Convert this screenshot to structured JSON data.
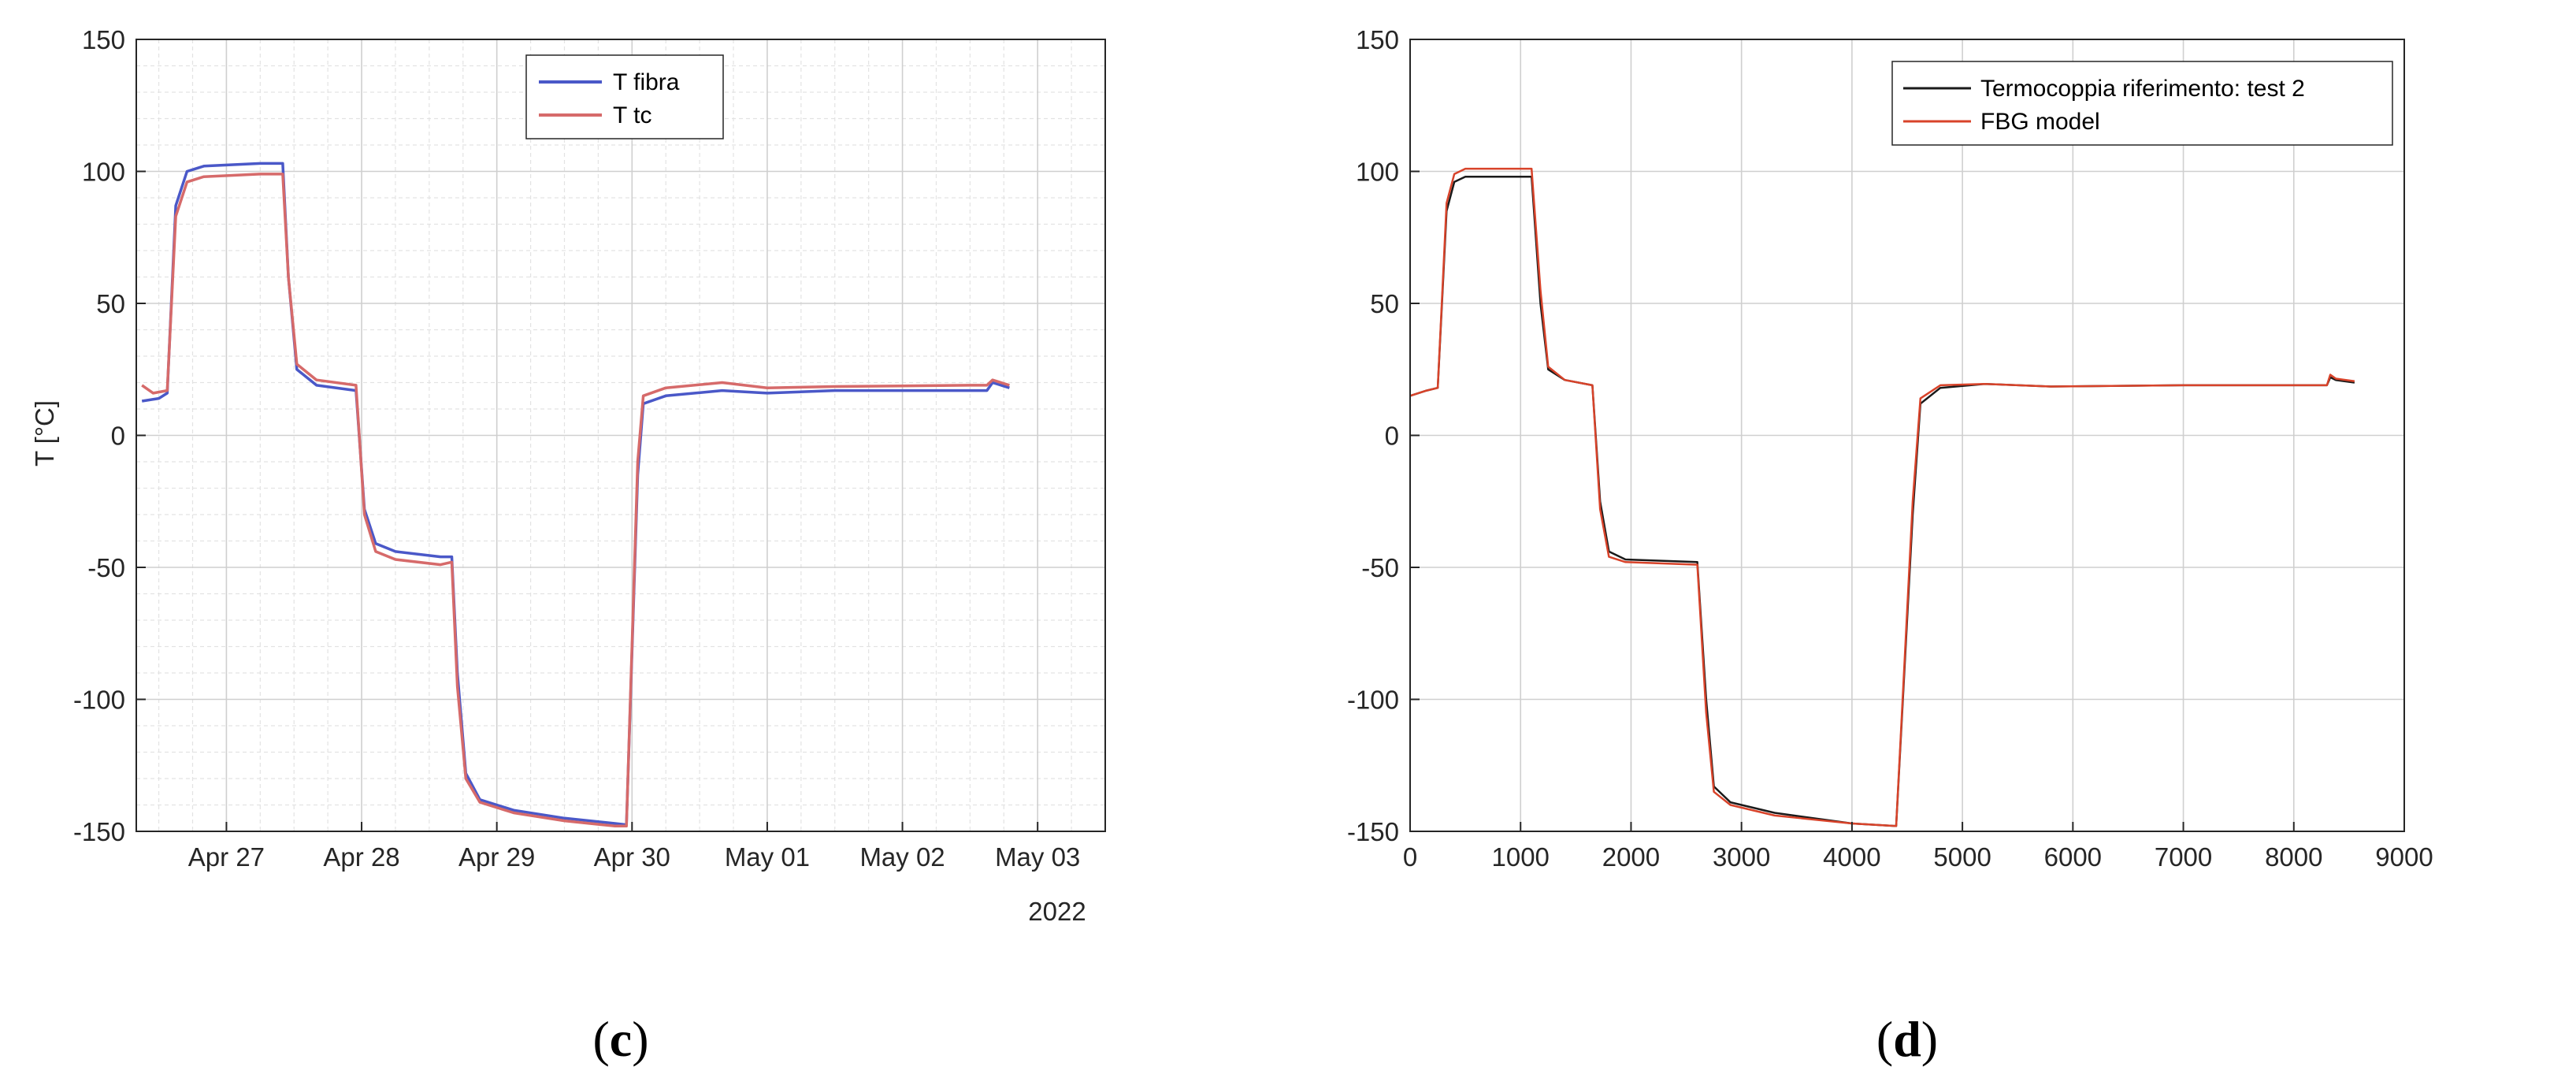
{
  "chart_data": [
    {
      "type": "line",
      "panel": "c",
      "caption_open": "(",
      "caption_letter": "c",
      "caption_close": ")",
      "title": "",
      "xlabel": "",
      "ylabel": "T [°C]",
      "x_scale": "date",
      "xlim": [
        "2022-04-26T08:00",
        "2022-05-03T12:00"
      ],
      "ylim": [
        -150,
        150
      ],
      "yticks": [
        -150,
        -100,
        -50,
        0,
        50,
        100,
        150
      ],
      "xticks": [
        {
          "date": "2022-04-27",
          "label": "Apr 27"
        },
        {
          "date": "2022-04-28",
          "label": "Apr 28"
        },
        {
          "date": "2022-04-29",
          "label": "Apr 29"
        },
        {
          "date": "2022-04-30",
          "label": "Apr 30"
        },
        {
          "date": "2022-05-01",
          "label": "May 01"
        },
        {
          "date": "2022-05-02",
          "label": "May 02"
        },
        {
          "date": "2022-05-03",
          "label": "May 03"
        }
      ],
      "x_secondary_label": "2022",
      "grid": "major and minor",
      "legend": "top-center",
      "series": [
        {
          "name": "T fibra",
          "color": "#4a58c8",
          "points": [
            [
              "2022-04-26T09:00",
              13
            ],
            [
              "2022-04-26T12:00",
              14
            ],
            [
              "2022-04-26T13:30",
              16
            ],
            [
              "2022-04-26T15:00",
              87
            ],
            [
              "2022-04-26T17:00",
              100
            ],
            [
              "2022-04-26T20:00",
              102
            ],
            [
              "2022-04-27T06:00",
              103
            ],
            [
              "2022-04-27T10:00",
              103
            ],
            [
              "2022-04-27T11:00",
              60
            ],
            [
              "2022-04-27T12:30",
              25
            ],
            [
              "2022-04-27T16:00",
              19
            ],
            [
              "2022-04-27T23:00",
              17
            ],
            [
              "2022-04-28T00:30",
              -28
            ],
            [
              "2022-04-28T02:30",
              -41
            ],
            [
              "2022-04-28T06:00",
              -44
            ],
            [
              "2022-04-28T14:00",
              -46
            ],
            [
              "2022-04-28T16:00",
              -46
            ],
            [
              "2022-04-28T17:00",
              -90
            ],
            [
              "2022-04-28T18:30",
              -128
            ],
            [
              "2022-04-28T21:00",
              -138
            ],
            [
              "2022-04-29T03:00",
              -142
            ],
            [
              "2022-04-29T12:00",
              -145
            ],
            [
              "2022-04-29T21:00",
              -147
            ],
            [
              "2022-04-29T23:00",
              -147.5
            ],
            [
              "2022-04-30T01:00",
              -15
            ],
            [
              "2022-04-30T02:00",
              12
            ],
            [
              "2022-04-30T06:00",
              15
            ],
            [
              "2022-04-30T16:00",
              17
            ],
            [
              "2022-05-01T00:00",
              16
            ],
            [
              "2022-05-01T12:00",
              17
            ],
            [
              "2022-05-02T12:00",
              17
            ],
            [
              "2022-05-02T15:00",
              17
            ],
            [
              "2022-05-02T16:00",
              20
            ],
            [
              "2022-05-02T19:00",
              18
            ]
          ]
        },
        {
          "name": "T tc",
          "color": "#d66a6a",
          "points": [
            [
              "2022-04-26T09:00",
              19
            ],
            [
              "2022-04-26T11:00",
              16
            ],
            [
              "2022-04-26T13:30",
              17
            ],
            [
              "2022-04-26T15:00",
              83
            ],
            [
              "2022-04-26T17:00",
              96
            ],
            [
              "2022-04-26T20:00",
              98
            ],
            [
              "2022-04-27T06:00",
              99
            ],
            [
              "2022-04-27T10:00",
              99
            ],
            [
              "2022-04-27T11:00",
              60
            ],
            [
              "2022-04-27T12:30",
              27
            ],
            [
              "2022-04-27T16:00",
              21
            ],
            [
              "2022-04-27T23:00",
              19
            ],
            [
              "2022-04-28T00:30",
              -30
            ],
            [
              "2022-04-28T02:30",
              -44
            ],
            [
              "2022-04-28T06:00",
              -47
            ],
            [
              "2022-04-28T14:00",
              -49
            ],
            [
              "2022-04-28T16:00",
              -48
            ],
            [
              "2022-04-28T17:00",
              -95
            ],
            [
              "2022-04-28T18:30",
              -130
            ],
            [
              "2022-04-28T21:00",
              -139
            ],
            [
              "2022-04-29T03:00",
              -143
            ],
            [
              "2022-04-29T12:00",
              -146
            ],
            [
              "2022-04-29T21:00",
              -148
            ],
            [
              "2022-04-29T23:00",
              -148
            ],
            [
              "2022-04-30T01:00",
              -10
            ],
            [
              "2022-04-30T02:00",
              15
            ],
            [
              "2022-04-30T06:00",
              18
            ],
            [
              "2022-04-30T16:00",
              20
            ],
            [
              "2022-05-01T00:00",
              18
            ],
            [
              "2022-05-01T12:00",
              18.5
            ],
            [
              "2022-05-02T12:00",
              19
            ],
            [
              "2022-05-02T15:00",
              19
            ],
            [
              "2022-05-02T16:00",
              21
            ],
            [
              "2022-05-02T19:00",
              19
            ]
          ]
        }
      ]
    },
    {
      "type": "line",
      "panel": "d",
      "caption_open": "(",
      "caption_letter": "d",
      "caption_close": ")",
      "title": "",
      "xlabel": "",
      "ylabel": "",
      "xlim": [
        0,
        9000
      ],
      "ylim": [
        -150,
        150
      ],
      "xticks": [
        0,
        1000,
        2000,
        3000,
        4000,
        5000,
        6000,
        7000,
        8000,
        9000
      ],
      "yticks": [
        -150,
        -100,
        -50,
        0,
        50,
        100,
        150
      ],
      "grid": "major",
      "legend": "top-right",
      "series": [
        {
          "name": "Termocoppia riferimento: test 2",
          "color": "#1a1a1a",
          "points": [
            [
              0,
              15
            ],
            [
              150,
              17
            ],
            [
              250,
              18
            ],
            [
              330,
              85
            ],
            [
              400,
              96
            ],
            [
              500,
              98
            ],
            [
              1100,
              98
            ],
            [
              1180,
              50
            ],
            [
              1250,
              25
            ],
            [
              1400,
              21
            ],
            [
              1650,
              19
            ],
            [
              1720,
              -25
            ],
            [
              1800,
              -44
            ],
            [
              1950,
              -47
            ],
            [
              2600,
              -48
            ],
            [
              2680,
              -100
            ],
            [
              2750,
              -133
            ],
            [
              2900,
              -139
            ],
            [
              3300,
              -143
            ],
            [
              4000,
              -147
            ],
            [
              4400,
              -148
            ],
            [
              4550,
              -30
            ],
            [
              4620,
              12
            ],
            [
              4800,
              18
            ],
            [
              5200,
              19.5
            ],
            [
              5800,
              18.5
            ],
            [
              7000,
              19
            ],
            [
              8300,
              19
            ],
            [
              8330,
              22
            ],
            [
              8380,
              21
            ],
            [
              8550,
              20
            ]
          ]
        },
        {
          "name": "FBG model",
          "color": "#d8432a",
          "points": [
            [
              0,
              15
            ],
            [
              150,
              17
            ],
            [
              250,
              18
            ],
            [
              330,
              88
            ],
            [
              400,
              99
            ],
            [
              500,
              101
            ],
            [
              1100,
              101
            ],
            [
              1180,
              55
            ],
            [
              1250,
              26
            ],
            [
              1400,
              21
            ],
            [
              1650,
              19
            ],
            [
              1720,
              -28
            ],
            [
              1800,
              -46
            ],
            [
              1950,
              -48
            ],
            [
              2600,
              -49
            ],
            [
              2680,
              -105
            ],
            [
              2750,
              -135
            ],
            [
              2900,
              -140
            ],
            [
              3300,
              -144
            ],
            [
              4000,
              -147
            ],
            [
              4400,
              -148
            ],
            [
              4550,
              -25
            ],
            [
              4620,
              14
            ],
            [
              4800,
              19
            ],
            [
              5200,
              19.5
            ],
            [
              5800,
              18.5
            ],
            [
              7000,
              19
            ],
            [
              8300,
              19
            ],
            [
              8330,
              23
            ],
            [
              8380,
              21.5
            ],
            [
              8550,
              20.5
            ]
          ]
        }
      ]
    }
  ]
}
